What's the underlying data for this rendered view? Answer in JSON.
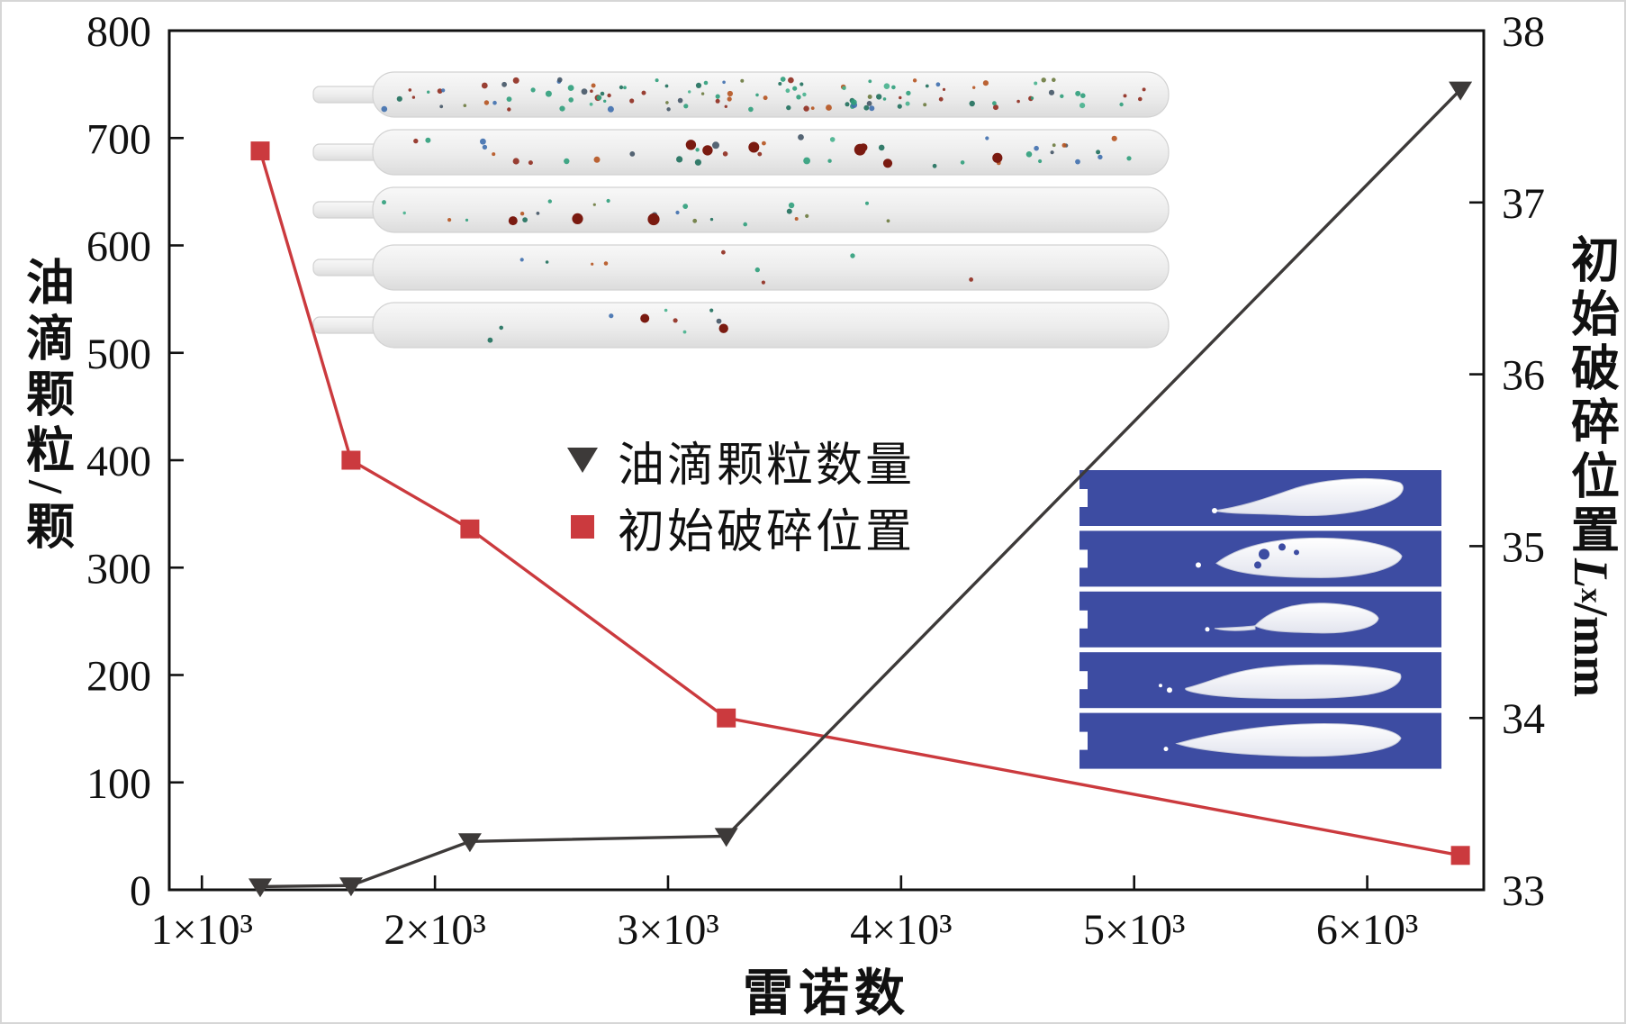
{
  "chart_data": {
    "type": "line",
    "title": "",
    "xlabel": "雷诺数",
    "ylabel_left": "油滴颗粒/颗",
    "ylabel_right": {
      "prefix": "初始破碎位置",
      "symbol": "L",
      "subscript": "x",
      "unit": "/mm"
    },
    "x_range": [
      860,
      6500
    ],
    "x_ticks": [
      {
        "v": 1000,
        "label": "1×10³"
      },
      {
        "v": 2000,
        "label": "2×10³"
      },
      {
        "v": 3000,
        "label": "3×10³"
      },
      {
        "v": 4000,
        "label": "4×10³"
      },
      {
        "v": 5000,
        "label": "5×10³"
      },
      {
        "v": 6000,
        "label": "6×10³"
      }
    ],
    "y_left": {
      "range": [
        0,
        800
      ],
      "ticks": [
        0,
        100,
        200,
        300,
        400,
        500,
        600,
        700,
        800
      ]
    },
    "y_right": {
      "range": [
        33,
        38
      ],
      "ticks": [
        33,
        34,
        35,
        36,
        37,
        38
      ]
    },
    "grid": false,
    "legend_position": "center",
    "series": [
      {
        "name": "油滴颗粒数量",
        "axis": "left",
        "marker": "triangle-down",
        "color": "#3d3a39",
        "x": [
          1250,
          1640,
          2150,
          3250,
          6400
        ],
        "y": [
          3,
          4,
          45,
          50,
          745
        ]
      },
      {
        "name": "初始破碎位置",
        "axis": "right",
        "marker": "square",
        "color": "#cb3a3e",
        "x": [
          1250,
          1640,
          2150,
          3250,
          6400
        ],
        "y": [
          37.3,
          35.5,
          35.1,
          34.0,
          33.2
        ]
      }
    ]
  },
  "insets": {
    "top": {
      "name": "channel-droplet-simulation-snapshots",
      "rows": 5
    },
    "right": {
      "name": "jet-breakup-simulation-snapshots",
      "rows": 5,
      "panel_color": "#3d4ca2"
    }
  }
}
